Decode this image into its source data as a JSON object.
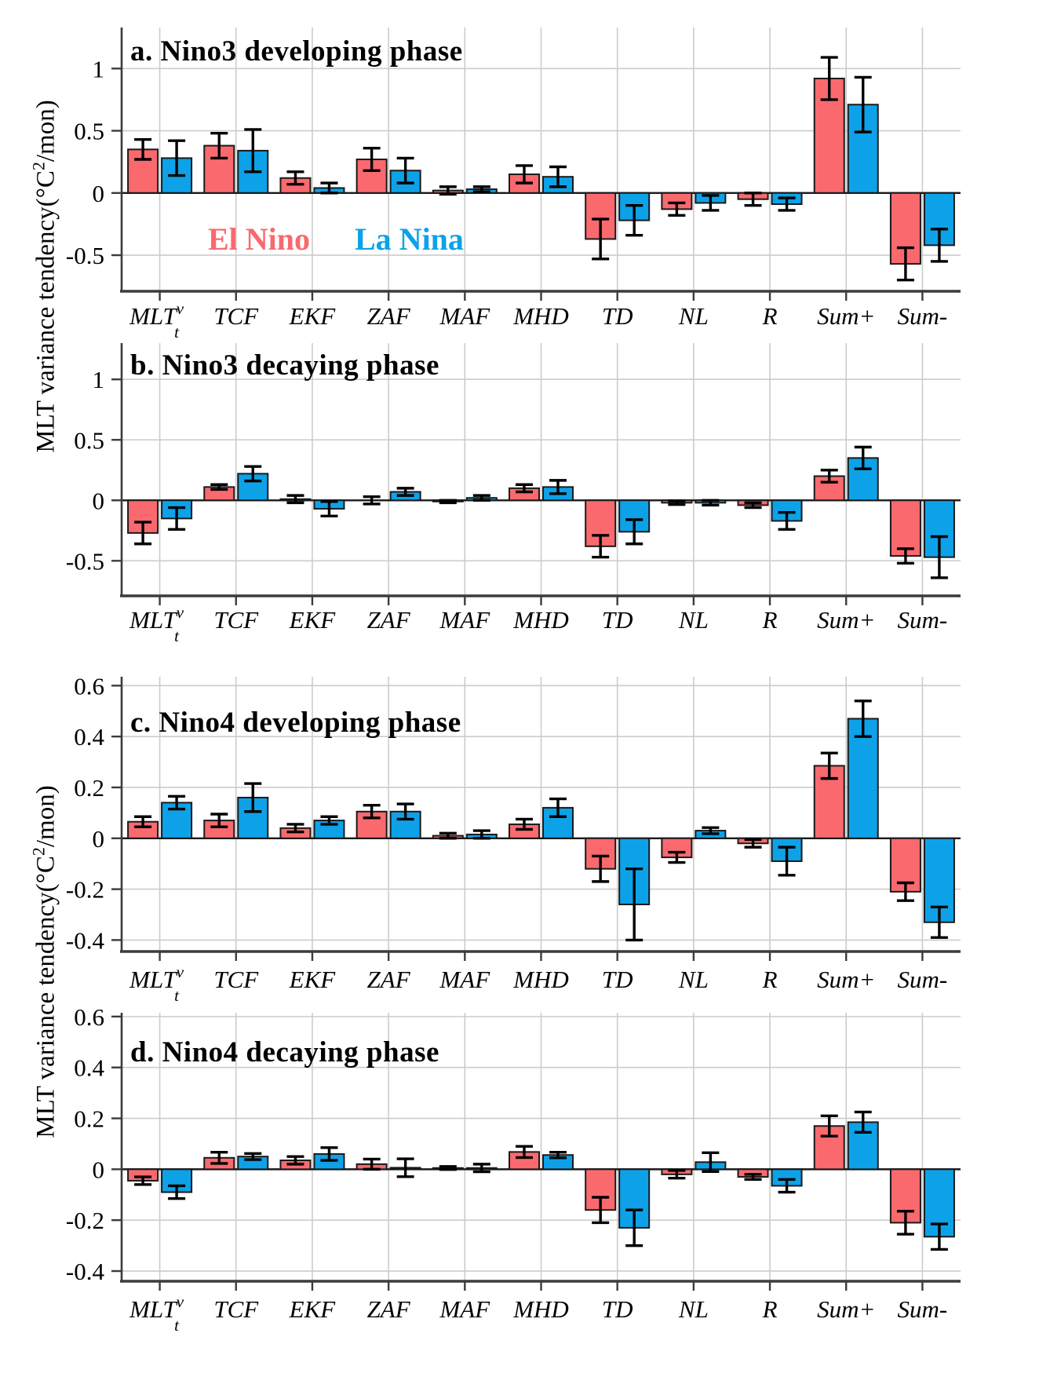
{
  "figure": {
    "background": "#FFFFFF"
  },
  "colors": {
    "el_nino": "#F9696E",
    "la_nina": "#0DA2E8",
    "grid": "#CCCCCC",
    "zero_line": "#1A1A1A",
    "axis": "#3C3C3C",
    "bar_outline": "#1A1A1A",
    "error_bar": "#000000",
    "text": "#000000"
  },
  "chart_data": {
    "type": "bar",
    "grid": true,
    "legend_position": "inside panel a, below zero line",
    "ylabel": {
      "pre": "MLT variance tendency(°C",
      "sup": "2",
      "post": "/mon)"
    },
    "legend": [
      {
        "label": "El Nino",
        "color": "#F9696E"
      },
      {
        "label": "La Nina",
        "color": "#0DA2E8"
      }
    ],
    "categories": [
      {
        "label": "MLT",
        "sup": "v",
        "sub": "t"
      },
      {
        "label": "TCF"
      },
      {
        "label": "EKF"
      },
      {
        "label": "ZAF"
      },
      {
        "label": "MAF"
      },
      {
        "label": "MHD"
      },
      {
        "label": "TD"
      },
      {
        "label": "NL"
      },
      {
        "label": "R"
      },
      {
        "label": "Sum+"
      },
      {
        "label": "Sum-"
      }
    ],
    "series_names": [
      "El Nino",
      "La Nina"
    ],
    "panels": [
      {
        "id": "a",
        "title": "a. Nino3 developing phase",
        "ylim": [
          -0.79,
          1.33
        ],
        "yticks": [
          1,
          0.5,
          0,
          -0.5
        ],
        "ytick_labels": [
          "1",
          "0.5",
          "0",
          "-0.5"
        ],
        "series": [
          {
            "name": "El Nino",
            "values": [
              0.35,
              0.38,
              0.12,
              0.27,
              0.02,
              0.15,
              -0.37,
              -0.13,
              -0.05,
              0.92,
              -0.57
            ],
            "errors": [
              0.08,
              0.1,
              0.05,
              0.09,
              0.03,
              0.07,
              0.16,
              0.05,
              0.05,
              0.17,
              0.13
            ]
          },
          {
            "name": "La Nina",
            "values": [
              0.28,
              0.34,
              0.04,
              0.18,
              0.03,
              0.13,
              -0.22,
              -0.08,
              -0.09,
              0.71,
              -0.42
            ],
            "errors": [
              0.14,
              0.17,
              0.04,
              0.1,
              0.02,
              0.08,
              0.12,
              0.06,
              0.05,
              0.22,
              0.13
            ]
          }
        ]
      },
      {
        "id": "b",
        "title": "b. Nino3 decaying phase",
        "ylim": [
          -0.79,
          1.3
        ],
        "yticks": [
          1,
          0.5,
          0,
          -0.5
        ],
        "ytick_labels": [
          "1",
          "0.5",
          "0",
          "-0.5"
        ],
        "series": [
          {
            "name": "El Nino",
            "values": [
              -0.27,
              0.11,
              0.01,
              0.0,
              -0.01,
              0.1,
              -0.38,
              -0.02,
              -0.04,
              0.2,
              -0.46
            ],
            "errors": [
              0.09,
              0.02,
              0.03,
              0.03,
              0.01,
              0.03,
              0.09,
              0.015,
              0.02,
              0.05,
              0.06
            ]
          },
          {
            "name": "La Nina",
            "values": [
              -0.15,
              0.22,
              -0.07,
              0.07,
              0.02,
              0.11,
              -0.26,
              -0.02,
              -0.17,
              0.35,
              -0.47
            ],
            "errors": [
              0.09,
              0.06,
              0.06,
              0.03,
              0.02,
              0.055,
              0.1,
              0.02,
              0.07,
              0.09,
              0.17
            ]
          }
        ]
      },
      {
        "id": "c",
        "title": "c. Nino4 developing phase",
        "ylim": [
          -0.445,
          0.635
        ],
        "yticks": [
          0.6,
          0.4,
          0.2,
          0,
          -0.2,
          -0.4
        ],
        "ytick_labels": [
          "0.6",
          "0.4",
          "0.2",
          "0",
          "-0.2",
          "-0.4"
        ],
        "series": [
          {
            "name": "El Nino",
            "values": [
              0.065,
              0.07,
              0.04,
              0.105,
              0.01,
              0.055,
              -0.12,
              -0.075,
              -0.02,
              0.285,
              -0.21
            ],
            "errors": [
              0.02,
              0.025,
              0.015,
              0.025,
              0.01,
              0.02,
              0.05,
              0.02,
              0.015,
              0.05,
              0.035
            ]
          },
          {
            "name": "La Nina",
            "values": [
              0.14,
              0.16,
              0.07,
              0.105,
              0.015,
              0.12,
              -0.26,
              0.03,
              -0.09,
              0.47,
              -0.33
            ],
            "errors": [
              0.025,
              0.055,
              0.015,
              0.03,
              0.015,
              0.035,
              0.14,
              0.012,
              0.055,
              0.07,
              0.06
            ]
          }
        ]
      },
      {
        "id": "d",
        "title": "d. Nino4 decaying phase",
        "ylim": [
          -0.44,
          0.615
        ],
        "yticks": [
          0.6,
          0.4,
          0.2,
          0,
          -0.2,
          -0.4
        ],
        "ytick_labels": [
          "0.6",
          "0.4",
          "0.2",
          "0",
          "-0.2",
          "-0.4"
        ],
        "series": [
          {
            "name": "El Nino",
            "values": [
              -0.045,
              0.045,
              0.035,
              0.02,
              0.005,
              0.068,
              -0.16,
              -0.02,
              -0.03,
              0.17,
              -0.21
            ],
            "errors": [
              0.015,
              0.022,
              0.015,
              0.02,
              0.006,
              0.022,
              0.05,
              0.015,
              0.01,
              0.04,
              0.045
            ]
          },
          {
            "name": "La Nina",
            "values": [
              -0.09,
              0.05,
              0.06,
              0.006,
              0.005,
              0.056,
              -0.23,
              0.028,
              -0.065,
              0.185,
              -0.265
            ],
            "errors": [
              0.025,
              0.012,
              0.025,
              0.035,
              0.015,
              0.011,
              0.07,
              0.037,
              0.025,
              0.04,
              0.05
            ]
          }
        ]
      }
    ]
  }
}
